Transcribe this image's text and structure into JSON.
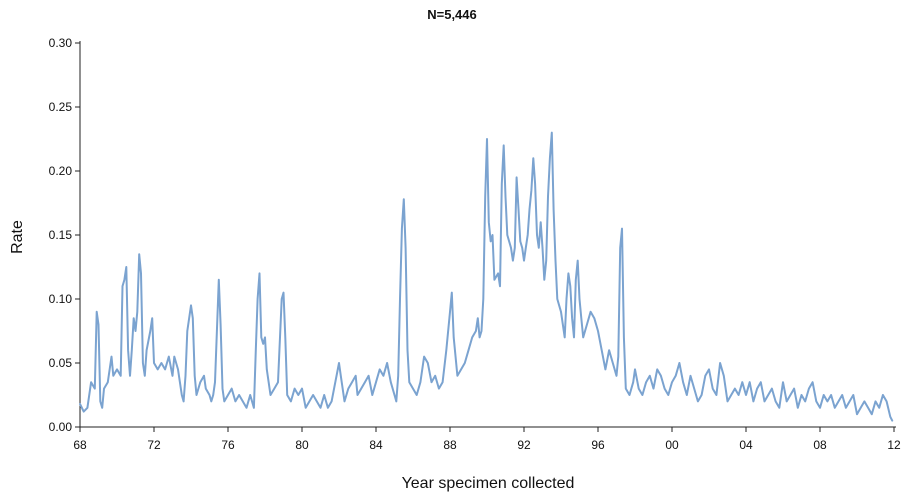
{
  "chart_data": {
    "type": "line",
    "title": "N=5,446",
    "xlabel": "Year specimen collected",
    "ylabel": "Rate",
    "xlim": [
      1968,
      2012
    ],
    "ylim": [
      0,
      0.3
    ],
    "grid": false,
    "legend": "none",
    "x_ticks": [
      {
        "value": 1968,
        "label": "68"
      },
      {
        "value": 1972,
        "label": "72"
      },
      {
        "value": 1976,
        "label": "76"
      },
      {
        "value": 1980,
        "label": "80"
      },
      {
        "value": 1984,
        "label": "84"
      },
      {
        "value": 1988,
        "label": "88"
      },
      {
        "value": 1992,
        "label": "92"
      },
      {
        "value": 1996,
        "label": "96"
      },
      {
        "value": 2000,
        "label": "00"
      },
      {
        "value": 2004,
        "label": "04"
      },
      {
        "value": 2008,
        "label": "08"
      },
      {
        "value": 2012,
        "label": "12"
      }
    ],
    "y_ticks": [
      {
        "value": 0.0,
        "label": "0.00"
      },
      {
        "value": 0.05,
        "label": "0.05"
      },
      {
        "value": 0.1,
        "label": "0.10"
      },
      {
        "value": 0.15,
        "label": "0.15"
      },
      {
        "value": 0.2,
        "label": "0.20"
      },
      {
        "value": 0.25,
        "label": "0.25"
      },
      {
        "value": 0.3,
        "label": "0.30"
      }
    ],
    "series": [
      {
        "color": "#7ba3d0",
        "points": [
          [
            1968.0,
            0.018
          ],
          [
            1968.2,
            0.012
          ],
          [
            1968.4,
            0.015
          ],
          [
            1968.6,
            0.035
          ],
          [
            1968.8,
            0.03
          ],
          [
            1968.9,
            0.09
          ],
          [
            1969.0,
            0.08
          ],
          [
            1969.1,
            0.02
          ],
          [
            1969.2,
            0.015
          ],
          [
            1969.3,
            0.03
          ],
          [
            1969.5,
            0.035
          ],
          [
            1969.7,
            0.055
          ],
          [
            1969.8,
            0.04
          ],
          [
            1970.0,
            0.045
          ],
          [
            1970.2,
            0.04
          ],
          [
            1970.3,
            0.11
          ],
          [
            1970.4,
            0.115
          ],
          [
            1970.5,
            0.125
          ],
          [
            1970.6,
            0.06
          ],
          [
            1970.7,
            0.04
          ],
          [
            1970.8,
            0.06
          ],
          [
            1970.9,
            0.085
          ],
          [
            1971.0,
            0.075
          ],
          [
            1971.1,
            0.09
          ],
          [
            1971.2,
            0.135
          ],
          [
            1971.3,
            0.12
          ],
          [
            1971.4,
            0.05
          ],
          [
            1971.5,
            0.04
          ],
          [
            1971.6,
            0.06
          ],
          [
            1971.8,
            0.075
          ],
          [
            1971.9,
            0.085
          ],
          [
            1972.0,
            0.05
          ],
          [
            1972.2,
            0.045
          ],
          [
            1972.4,
            0.05
          ],
          [
            1972.6,
            0.045
          ],
          [
            1972.8,
            0.055
          ],
          [
            1973.0,
            0.04
          ],
          [
            1973.1,
            0.055
          ],
          [
            1973.3,
            0.045
          ],
          [
            1973.5,
            0.025
          ],
          [
            1973.6,
            0.02
          ],
          [
            1973.7,
            0.04
          ],
          [
            1973.8,
            0.075
          ],
          [
            1974.0,
            0.095
          ],
          [
            1974.1,
            0.085
          ],
          [
            1974.2,
            0.04
          ],
          [
            1974.3,
            0.025
          ],
          [
            1974.5,
            0.035
          ],
          [
            1974.7,
            0.04
          ],
          [
            1974.8,
            0.03
          ],
          [
            1975.0,
            0.025
          ],
          [
            1975.1,
            0.02
          ],
          [
            1975.2,
            0.025
          ],
          [
            1975.3,
            0.035
          ],
          [
            1975.5,
            0.115
          ],
          [
            1975.6,
            0.08
          ],
          [
            1975.7,
            0.03
          ],
          [
            1975.8,
            0.02
          ],
          [
            1976.0,
            0.025
          ],
          [
            1976.2,
            0.03
          ],
          [
            1976.4,
            0.02
          ],
          [
            1976.6,
            0.025
          ],
          [
            1976.8,
            0.02
          ],
          [
            1977.0,
            0.015
          ],
          [
            1977.2,
            0.025
          ],
          [
            1977.4,
            0.015
          ],
          [
            1977.5,
            0.06
          ],
          [
            1977.6,
            0.1
          ],
          [
            1977.7,
            0.12
          ],
          [
            1977.8,
            0.07
          ],
          [
            1977.9,
            0.065
          ],
          [
            1978.0,
            0.07
          ],
          [
            1978.1,
            0.045
          ],
          [
            1978.3,
            0.025
          ],
          [
            1978.5,
            0.03
          ],
          [
            1978.7,
            0.035
          ],
          [
            1978.9,
            0.1
          ],
          [
            1979.0,
            0.105
          ],
          [
            1979.1,
            0.07
          ],
          [
            1979.2,
            0.025
          ],
          [
            1979.4,
            0.02
          ],
          [
            1979.6,
            0.03
          ],
          [
            1979.8,
            0.025
          ],
          [
            1980.0,
            0.03
          ],
          [
            1980.2,
            0.015
          ],
          [
            1980.4,
            0.02
          ],
          [
            1980.6,
            0.025
          ],
          [
            1980.8,
            0.02
          ],
          [
            1981.0,
            0.015
          ],
          [
            1981.2,
            0.025
          ],
          [
            1981.4,
            0.015
          ],
          [
            1981.6,
            0.02
          ],
          [
            1981.8,
            0.035
          ],
          [
            1982.0,
            0.05
          ],
          [
            1982.1,
            0.04
          ],
          [
            1982.3,
            0.02
          ],
          [
            1982.5,
            0.03
          ],
          [
            1982.7,
            0.035
          ],
          [
            1982.9,
            0.04
          ],
          [
            1983.0,
            0.025
          ],
          [
            1983.2,
            0.03
          ],
          [
            1983.4,
            0.035
          ],
          [
            1983.6,
            0.04
          ],
          [
            1983.8,
            0.025
          ],
          [
            1984.0,
            0.035
          ],
          [
            1984.2,
            0.045
          ],
          [
            1984.4,
            0.04
          ],
          [
            1984.6,
            0.05
          ],
          [
            1984.8,
            0.035
          ],
          [
            1985.0,
            0.025
          ],
          [
            1985.1,
            0.02
          ],
          [
            1985.2,
            0.04
          ],
          [
            1985.3,
            0.1
          ],
          [
            1985.4,
            0.155
          ],
          [
            1985.5,
            0.178
          ],
          [
            1985.6,
            0.14
          ],
          [
            1985.7,
            0.06
          ],
          [
            1985.8,
            0.035
          ],
          [
            1986.0,
            0.03
          ],
          [
            1986.2,
            0.025
          ],
          [
            1986.4,
            0.035
          ],
          [
            1986.6,
            0.055
          ],
          [
            1986.8,
            0.05
          ],
          [
            1987.0,
            0.035
          ],
          [
            1987.2,
            0.04
          ],
          [
            1987.4,
            0.03
          ],
          [
            1987.6,
            0.035
          ],
          [
            1987.8,
            0.06
          ],
          [
            1988.0,
            0.09
          ],
          [
            1988.1,
            0.105
          ],
          [
            1988.2,
            0.07
          ],
          [
            1988.4,
            0.04
          ],
          [
            1988.6,
            0.045
          ],
          [
            1988.8,
            0.05
          ],
          [
            1989.0,
            0.06
          ],
          [
            1989.2,
            0.07
          ],
          [
            1989.4,
            0.075
          ],
          [
            1989.5,
            0.085
          ],
          [
            1989.6,
            0.07
          ],
          [
            1989.7,
            0.075
          ],
          [
            1989.8,
            0.1
          ],
          [
            1989.9,
            0.18
          ],
          [
            1990.0,
            0.225
          ],
          [
            1990.1,
            0.16
          ],
          [
            1990.2,
            0.145
          ],
          [
            1990.3,
            0.15
          ],
          [
            1990.4,
            0.115
          ],
          [
            1990.6,
            0.12
          ],
          [
            1990.7,
            0.11
          ],
          [
            1990.8,
            0.19
          ],
          [
            1990.9,
            0.22
          ],
          [
            1991.0,
            0.18
          ],
          [
            1991.1,
            0.15
          ],
          [
            1991.3,
            0.14
          ],
          [
            1991.4,
            0.13
          ],
          [
            1991.5,
            0.14
          ],
          [
            1991.6,
            0.195
          ],
          [
            1991.7,
            0.17
          ],
          [
            1991.8,
            0.145
          ],
          [
            1991.9,
            0.14
          ],
          [
            1992.0,
            0.13
          ],
          [
            1992.1,
            0.14
          ],
          [
            1992.2,
            0.15
          ],
          [
            1992.3,
            0.17
          ],
          [
            1992.4,
            0.185
          ],
          [
            1992.5,
            0.21
          ],
          [
            1992.6,
            0.19
          ],
          [
            1992.7,
            0.15
          ],
          [
            1992.8,
            0.14
          ],
          [
            1992.9,
            0.16
          ],
          [
            1993.0,
            0.14
          ],
          [
            1993.1,
            0.115
          ],
          [
            1993.2,
            0.13
          ],
          [
            1993.3,
            0.18
          ],
          [
            1993.4,
            0.21
          ],
          [
            1993.5,
            0.23
          ],
          [
            1993.6,
            0.17
          ],
          [
            1993.7,
            0.13
          ],
          [
            1993.8,
            0.1
          ],
          [
            1994.0,
            0.09
          ],
          [
            1994.2,
            0.07
          ],
          [
            1994.3,
            0.1
          ],
          [
            1994.4,
            0.12
          ],
          [
            1994.5,
            0.11
          ],
          [
            1994.6,
            0.085
          ],
          [
            1994.7,
            0.07
          ],
          [
            1994.8,
            0.115
          ],
          [
            1994.9,
            0.13
          ],
          [
            1995.0,
            0.1
          ],
          [
            1995.1,
            0.085
          ],
          [
            1995.2,
            0.07
          ],
          [
            1995.4,
            0.08
          ],
          [
            1995.6,
            0.09
          ],
          [
            1995.8,
            0.085
          ],
          [
            1996.0,
            0.075
          ],
          [
            1996.2,
            0.06
          ],
          [
            1996.4,
            0.045
          ],
          [
            1996.6,
            0.06
          ],
          [
            1996.8,
            0.05
          ],
          [
            1997.0,
            0.04
          ],
          [
            1997.1,
            0.055
          ],
          [
            1997.2,
            0.14
          ],
          [
            1997.3,
            0.155
          ],
          [
            1997.4,
            0.07
          ],
          [
            1997.5,
            0.03
          ],
          [
            1997.7,
            0.025
          ],
          [
            1997.9,
            0.035
          ],
          [
            1998.0,
            0.045
          ],
          [
            1998.2,
            0.03
          ],
          [
            1998.4,
            0.025
          ],
          [
            1998.6,
            0.035
          ],
          [
            1998.8,
            0.04
          ],
          [
            1999.0,
            0.03
          ],
          [
            1999.2,
            0.045
          ],
          [
            1999.4,
            0.04
          ],
          [
            1999.6,
            0.03
          ],
          [
            1999.8,
            0.025
          ],
          [
            2000.0,
            0.035
          ],
          [
            2000.2,
            0.04
          ],
          [
            2000.4,
            0.05
          ],
          [
            2000.6,
            0.035
          ],
          [
            2000.8,
            0.025
          ],
          [
            2001.0,
            0.04
          ],
          [
            2001.2,
            0.03
          ],
          [
            2001.4,
            0.02
          ],
          [
            2001.6,
            0.025
          ],
          [
            2001.8,
            0.04
          ],
          [
            2002.0,
            0.045
          ],
          [
            2002.2,
            0.03
          ],
          [
            2002.4,
            0.025
          ],
          [
            2002.6,
            0.05
          ],
          [
            2002.8,
            0.04
          ],
          [
            2003.0,
            0.02
          ],
          [
            2003.2,
            0.025
          ],
          [
            2003.4,
            0.03
          ],
          [
            2003.6,
            0.025
          ],
          [
            2003.8,
            0.035
          ],
          [
            2004.0,
            0.025
          ],
          [
            2004.2,
            0.035
          ],
          [
            2004.4,
            0.02
          ],
          [
            2004.6,
            0.03
          ],
          [
            2004.8,
            0.035
          ],
          [
            2005.0,
            0.02
          ],
          [
            2005.2,
            0.025
          ],
          [
            2005.4,
            0.03
          ],
          [
            2005.6,
            0.02
          ],
          [
            2005.8,
            0.015
          ],
          [
            2006.0,
            0.035
          ],
          [
            2006.2,
            0.02
          ],
          [
            2006.4,
            0.025
          ],
          [
            2006.6,
            0.03
          ],
          [
            2006.8,
            0.015
          ],
          [
            2007.0,
            0.025
          ],
          [
            2007.2,
            0.02
          ],
          [
            2007.4,
            0.03
          ],
          [
            2007.6,
            0.035
          ],
          [
            2007.8,
            0.02
          ],
          [
            2008.0,
            0.015
          ],
          [
            2008.2,
            0.025
          ],
          [
            2008.4,
            0.02
          ],
          [
            2008.6,
            0.025
          ],
          [
            2008.8,
            0.015
          ],
          [
            2009.0,
            0.02
          ],
          [
            2009.2,
            0.025
          ],
          [
            2009.4,
            0.015
          ],
          [
            2009.6,
            0.02
          ],
          [
            2009.8,
            0.025
          ],
          [
            2010.0,
            0.01
          ],
          [
            2010.2,
            0.015
          ],
          [
            2010.4,
            0.02
          ],
          [
            2010.6,
            0.015
          ],
          [
            2010.8,
            0.01
          ],
          [
            2011.0,
            0.02
          ],
          [
            2011.2,
            0.015
          ],
          [
            2011.4,
            0.025
          ],
          [
            2011.6,
            0.02
          ],
          [
            2011.8,
            0.008
          ],
          [
            2011.9,
            0.005
          ]
        ]
      }
    ]
  }
}
